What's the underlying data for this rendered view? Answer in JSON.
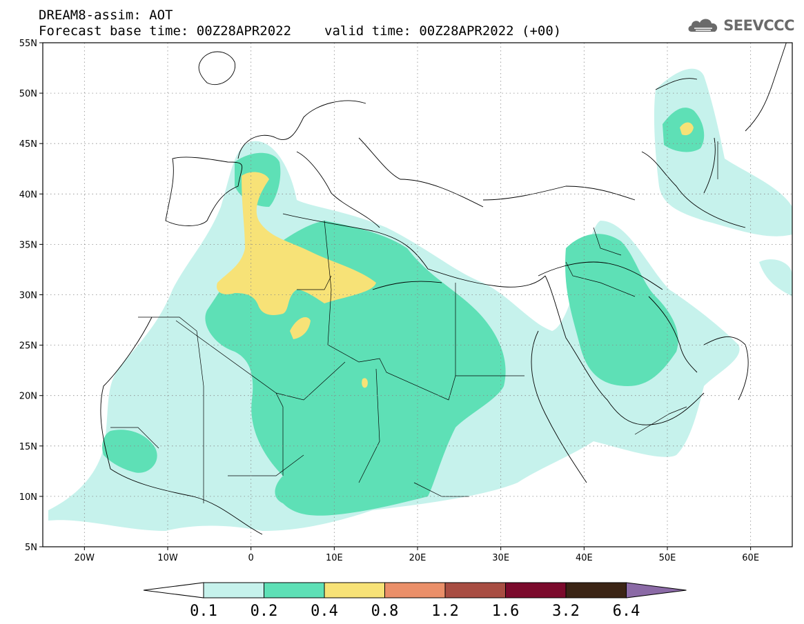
{
  "header": {
    "line1": "DREAM8-assim: AOT",
    "base_time": "Forecast base time: 00Z28APR2022",
    "valid_time": "valid time: 00Z28APR2022 (+00)"
  },
  "logo": {
    "icon": "cloud-icon",
    "text": "SEEVCCC"
  },
  "map": {
    "lon_range": [
      -25,
      65
    ],
    "lat_range": [
      5,
      55
    ],
    "lat_labels": [
      "55N",
      "50N",
      "45N",
      "40N",
      "35N",
      "30N",
      "25N",
      "20N",
      "15N",
      "10N",
      "5N"
    ],
    "lon_labels": [
      "20W",
      "10W",
      "0",
      "10E",
      "20E",
      "30E",
      "40E",
      "50E",
      "60E"
    ],
    "grid": "dotted"
  },
  "colorbar": {
    "levels": [
      "0.1",
      "0.2",
      "0.4",
      "0.8",
      "1.2",
      "1.6",
      "3.2",
      "6.4"
    ],
    "colors": [
      "#ffffff",
      "#c6f2ec",
      "#5ee0b6",
      "#f7e277",
      "#ea8f69",
      "#a84d42",
      "#7b0a2c",
      "#3b2415",
      "#8b6aa6"
    ]
  }
}
